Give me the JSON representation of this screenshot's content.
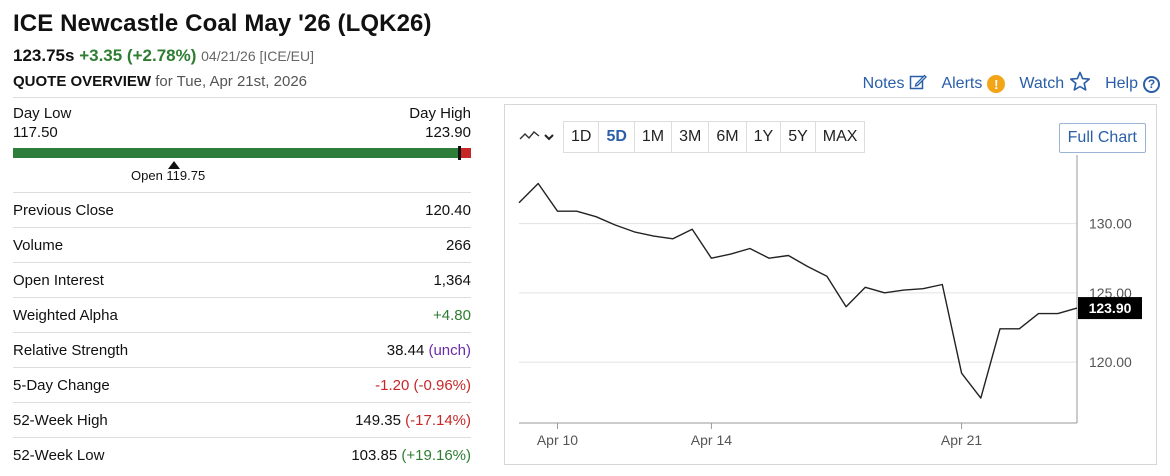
{
  "header": {
    "title": "ICE Newcastle Coal May '26 (LQK26)",
    "last": "123.75s",
    "change": "+3.35 (+2.78%)",
    "timestamp": "04/21/26 [ICE/EU]",
    "overview_heading": "QUOTE OVERVIEW",
    "overview_date": "for Tue, Apr 21st, 2026"
  },
  "toolbar": {
    "notes": "Notes",
    "alerts": "Alerts",
    "watch": "Watch",
    "help": "Help"
  },
  "range": {
    "low_label": "Day Low",
    "low_value": "117.50",
    "high_label": "Day High",
    "high_value": "123.90",
    "open_label": "Open 119.75"
  },
  "stats": [
    {
      "label": "Previous Close",
      "value": "120.40",
      "extra": ""
    },
    {
      "label": "Volume",
      "value": "266",
      "extra": ""
    },
    {
      "label": "Open Interest",
      "value": "1,364",
      "extra": ""
    },
    {
      "label": "Weighted Alpha",
      "value": "+4.80",
      "extra": ""
    },
    {
      "label": "Relative Strength",
      "value": "38.44",
      "extra": "(unch)"
    },
    {
      "label": "5-Day Change",
      "value": "-1.20 (-0.96%)",
      "extra": ""
    },
    {
      "label": "52-Week High",
      "value": "149.35",
      "extra": "(-17.14%)"
    },
    {
      "label": "52-Week Low",
      "value": "103.85",
      "extra": "(+19.16%)"
    }
  ],
  "chart_controls": {
    "timeframes": [
      "1D",
      "5D",
      "1M",
      "3M",
      "6M",
      "1Y",
      "5Y",
      "MAX"
    ],
    "active": "5D",
    "full_chart": "Full Chart"
  },
  "colors": {
    "positive": "#2e7d32",
    "negative": "#c62828",
    "link": "#2a5ea8",
    "unch": "#6a2da8"
  },
  "chart_data": {
    "type": "line",
    "y_ticks": [
      "130.00",
      "125.00",
      "120.00"
    ],
    "y_tick_values": [
      130,
      125,
      120
    ],
    "ylim": [
      115.6,
      133.8
    ],
    "x_tick_labels": [
      "Apr 10",
      "Apr 14",
      "Apr 21"
    ],
    "x_tick_index": [
      2,
      10,
      23
    ],
    "last_price_label": "123.90",
    "grid": true,
    "values": [
      131.5,
      132.9,
      130.9,
      130.9,
      130.5,
      129.9,
      129.4,
      129.1,
      128.9,
      129.6,
      127.5,
      127.8,
      128.2,
      127.5,
      127.7,
      126.9,
      126.2,
      124.0,
      125.4,
      125.0,
      125.2,
      125.3,
      125.6,
      119.2,
      117.4,
      122.4,
      122.4,
      123.5,
      123.5,
      123.9
    ],
    "x_index_range": [
      0,
      29
    ]
  }
}
